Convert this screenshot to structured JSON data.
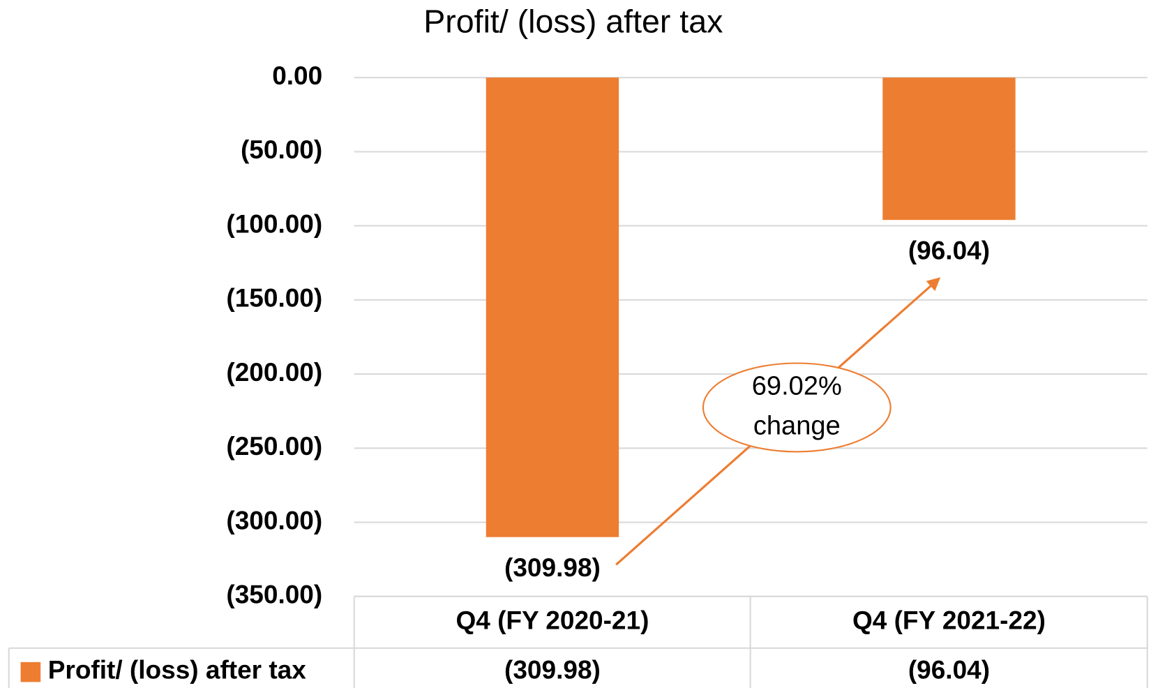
{
  "chart_data": {
    "type": "bar",
    "title": "Profit/ (loss) after tax",
    "categories": [
      "Q4 (FY 2020-21)",
      "Q4 (FY 2021-22)"
    ],
    "series": [
      {
        "name": "Profit/ (loss) after tax",
        "color": "#ed7d31",
        "values": [
          -309.98,
          -96.04
        ],
        "value_labels": [
          "(309.98)",
          "(96.04)"
        ]
      }
    ],
    "ylim": [
      -350,
      0
    ],
    "yticks": [
      {
        "value": 0,
        "label": "0.00"
      },
      {
        "value": -50,
        "label": "(50.00)"
      },
      {
        "value": -100,
        "label": "(100.00)"
      },
      {
        "value": -150,
        "label": "(150.00)"
      },
      {
        "value": -200,
        "label": "(200.00)"
      },
      {
        "value": -250,
        "label": "(250.00)"
      },
      {
        "value": -300,
        "label": "(300.00)"
      },
      {
        "value": -350,
        "label": "(350.00)"
      }
    ],
    "grid": true,
    "annotation": [
      "69.02%",
      "change"
    ]
  }
}
